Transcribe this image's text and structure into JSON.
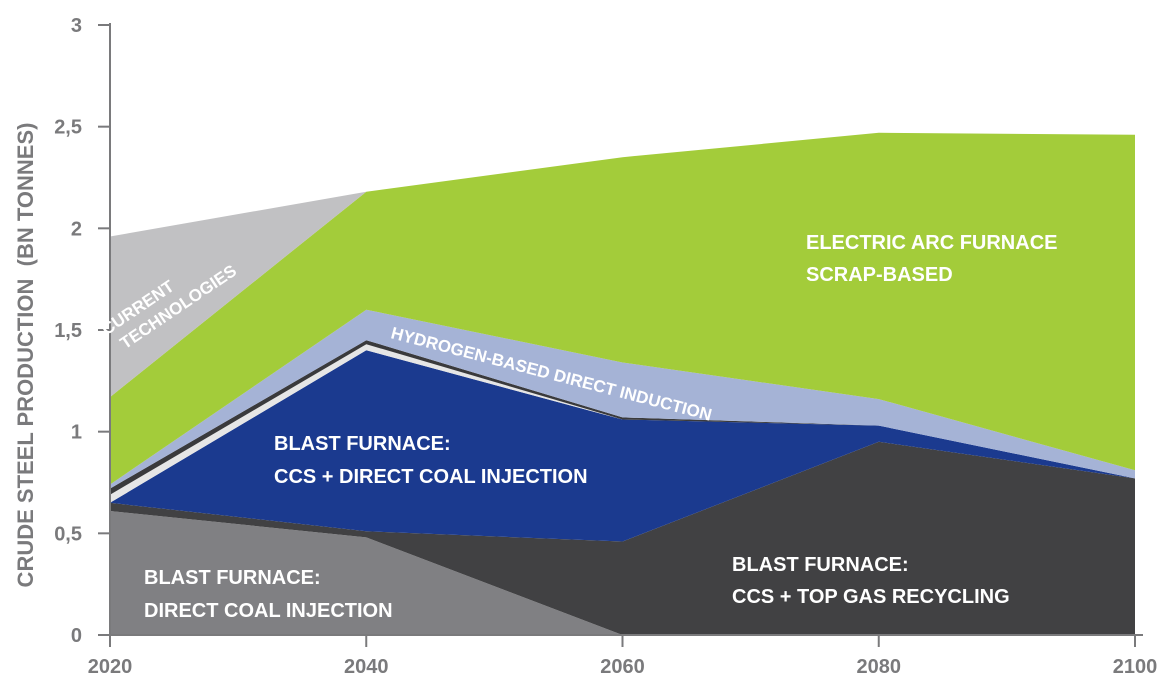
{
  "chart_data": {
    "type": "area",
    "stacked": true,
    "x": [
      2020,
      2040,
      2060,
      2080,
      2100
    ],
    "xlim": [
      2020,
      2100
    ],
    "ylim": [
      0,
      3
    ],
    "y_ticks": [
      "0",
      "0,5",
      "1",
      "1,5",
      "2",
      "2,5",
      "3"
    ],
    "x_ticks": [
      "2020",
      "2040",
      "2060",
      "2080",
      "2100"
    ],
    "ylabel": "CRUDE STEEL PRODUCTION  (BN TONNES)",
    "xlabel": "",
    "grid": false,
    "colors": {
      "bf_dci": "#808083",
      "bf_ccs_tgr": "#414143",
      "bf_ccs_dci": "#1b3a8f",
      "separator_light": "#e6e6e6",
      "separator_dark": "#3a3a3c",
      "hydrogen": "#a5b3d6",
      "eaf": "#a3cc3a",
      "current": "#c1c1c3",
      "axis": "#7a7a7c"
    },
    "series": [
      {
        "key": "bf_dci",
        "values": [
          0.61,
          0.48,
          0.0,
          0.0,
          0.0
        ]
      },
      {
        "key": "bf_ccs_tgr",
        "values": [
          0.04,
          0.03,
          0.46,
          0.95,
          0.77
        ]
      },
      {
        "key": "bf_ccs_dci",
        "values": [
          0.0,
          0.89,
          0.6,
          0.08,
          0.0
        ]
      },
      {
        "key": "separator_light",
        "values": [
          0.04,
          0.03,
          0.0,
          0.0,
          0.0
        ]
      },
      {
        "key": "separator_dark",
        "values": [
          0.03,
          0.02,
          0.01,
          0.0,
          0.0
        ]
      },
      {
        "key": "hydrogen",
        "values": [
          0.02,
          0.15,
          0.27,
          0.13,
          0.04
        ]
      },
      {
        "key": "eaf",
        "values": [
          0.43,
          0.58,
          1.01,
          1.31,
          1.65
        ]
      },
      {
        "key": "current",
        "values": [
          0.79,
          0.0,
          0.0,
          0.0,
          0.0
        ]
      }
    ],
    "annotations": {
      "current": [
        "CURRENT",
        "TECHNOLOGIES"
      ],
      "eaf": [
        "ELECTRIC ARC FURNACE",
        "SCRAP-BASED"
      ],
      "hydrogen": [
        "HYDROGEN-BASED DIRECT INDUCTION"
      ],
      "bf_ccs_dci": [
        "BLAST FURNACE:",
        "CCS + DIRECT COAL INJECTION"
      ],
      "bf_ccs_tgr": [
        "BLAST FURNACE:",
        "CCS + TOP GAS RECYCLING"
      ],
      "bf_dci": [
        "BLAST FURNACE:",
        "DIRECT COAL INJECTION"
      ]
    }
  }
}
